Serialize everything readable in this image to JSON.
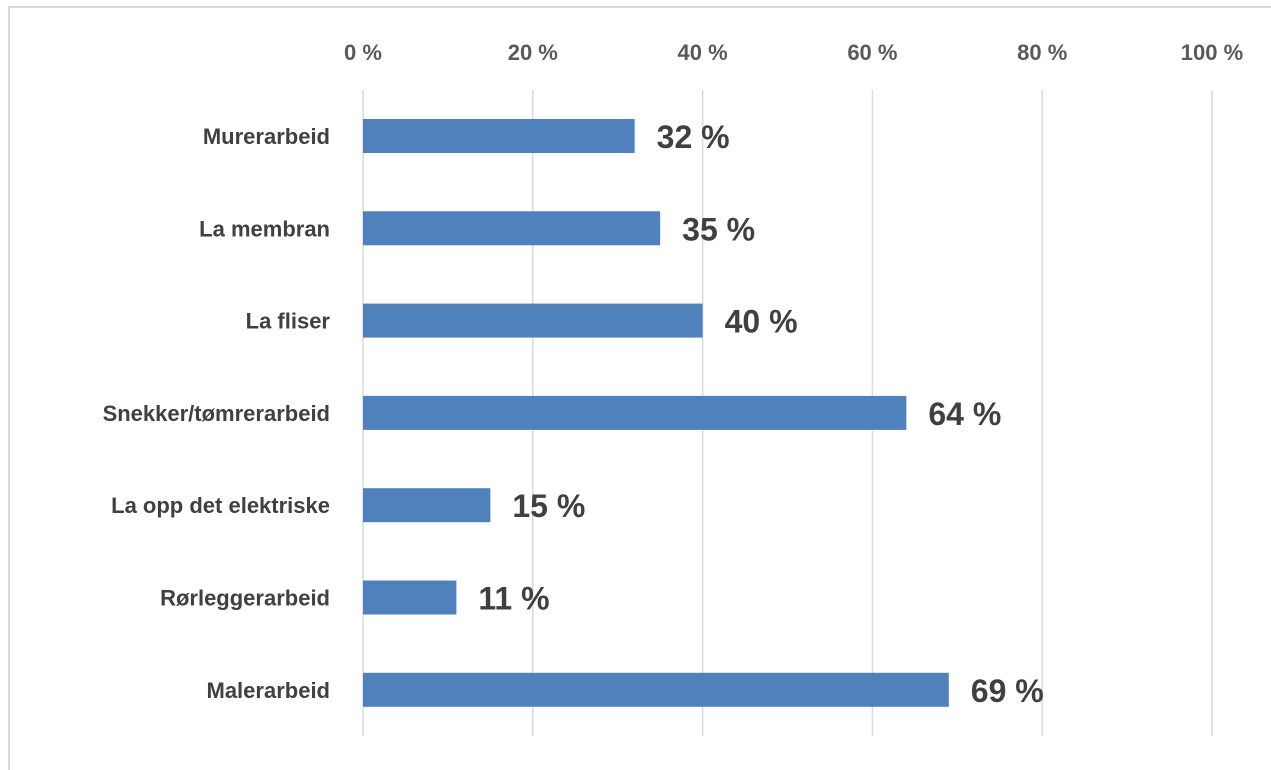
{
  "chart_data": {
    "type": "bar",
    "orientation": "horizontal",
    "categories": [
      "Murerarbeid",
      "La membran",
      "La fliser",
      "Snekker/tømrerarbeid",
      "La opp det elektriske",
      "Rørleggerarbeid",
      "Malerarbeid"
    ],
    "values": [
      32,
      35,
      40,
      64,
      15,
      11,
      69
    ],
    "data_labels": [
      "32 %",
      "35 %",
      "40 %",
      "64 %",
      "15 %",
      "11 %",
      "69 %"
    ],
    "xlim": [
      0,
      100
    ],
    "x_ticks": [
      0,
      20,
      40,
      60,
      80,
      100
    ],
    "x_tick_labels": [
      "0 %",
      "20 %",
      "40 %",
      "60 %",
      "80 %",
      "100 %"
    ],
    "x_axis_position": "top",
    "grid": true,
    "legend": "none",
    "title": "",
    "xlabel": "",
    "ylabel": "",
    "bar_color": "#4f81bd",
    "grid_color": "#d9d9d9"
  }
}
